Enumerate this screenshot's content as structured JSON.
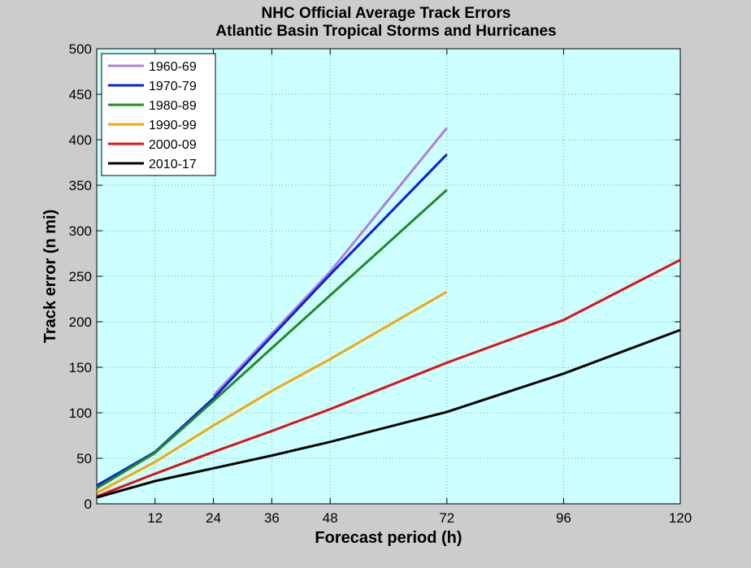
{
  "chart_data": {
    "type": "line",
    "title": "NHC Official Average Track Errors",
    "subtitle": "Atlantic Basin Tropical Storms and Hurricanes",
    "xlabel": "Forecast period (h)",
    "ylabel": "Track error (n mi)",
    "xlim": [
      0,
      120
    ],
    "ylim": [
      0,
      500
    ],
    "xticks": [
      12,
      24,
      36,
      48,
      72,
      96,
      120
    ],
    "yticks": [
      0,
      50,
      100,
      150,
      200,
      250,
      300,
      350,
      400,
      450,
      500
    ],
    "grid": true,
    "legend_position": "top-left",
    "plot_background": "#ccffff",
    "figure_background": "#cccccc",
    "series": [
      {
        "name": "1960-69",
        "color": "#b07fdb",
        "x": [
          24,
          48,
          72
        ],
        "y": [
          119,
          255,
          413
        ]
      },
      {
        "name": "1970-79",
        "color": "#0b1fdc",
        "x": [
          0,
          12,
          24,
          48,
          72
        ],
        "y": [
          20,
          57,
          116,
          252,
          384
        ]
      },
      {
        "name": "1980-89",
        "color": "#228b22",
        "x": [
          0,
          12,
          24,
          48,
          72
        ],
        "y": [
          17,
          56,
          113,
          229,
          345
        ]
      },
      {
        "name": "1990-99",
        "color": "#f5a50a",
        "x": [
          0,
          12,
          24,
          36,
          48,
          72
        ],
        "y": [
          12,
          46,
          86,
          124,
          159,
          233
        ]
      },
      {
        "name": "2000-09",
        "color": "#e01010",
        "x": [
          0,
          12,
          24,
          36,
          48,
          72,
          96,
          120
        ],
        "y": [
          8,
          33,
          57,
          80,
          104,
          155,
          202,
          268
        ]
      },
      {
        "name": "2010-17",
        "color": "#000000",
        "x": [
          0,
          12,
          24,
          36,
          48,
          72,
          96,
          120
        ],
        "y": [
          7,
          25,
          39,
          53,
          68,
          101,
          143,
          191
        ]
      }
    ]
  }
}
